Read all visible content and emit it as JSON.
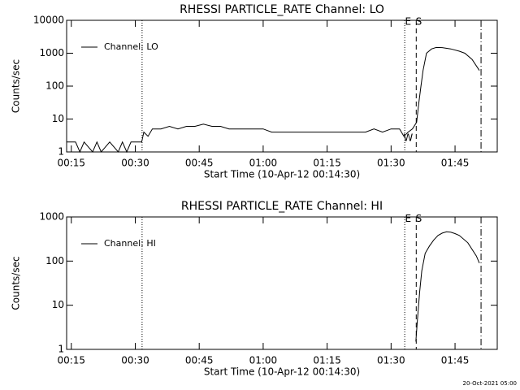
{
  "chart_data": [
    {
      "type": "line",
      "title": "RHESSI PARTICLE_RATE Channel: LO",
      "x_label": "Start Time (10-Apr-12 00:14:30)",
      "y_label": "Counts/sec",
      "log_y": true,
      "xlim": [
        13.9,
        114.9
      ],
      "ylim": [
        1,
        10000
      ],
      "xticks": [
        {
          "value": 15,
          "label": "00:15"
        },
        {
          "value": 30,
          "label": "00:30"
        },
        {
          "value": 45,
          "label": "00:45"
        },
        {
          "value": 60,
          "label": "01:00"
        },
        {
          "value": 75,
          "label": "01:15"
        },
        {
          "value": 90,
          "label": "01:30"
        },
        {
          "value": 105,
          "label": "01:45"
        }
      ],
      "yticks": [
        1,
        10,
        100,
        1000,
        10000
      ],
      "vlines": [
        {
          "x": 31.6,
          "style": "dotted"
        },
        {
          "x": 93.2,
          "style": "dotted"
        },
        {
          "x": 95.9,
          "style": "dashed"
        },
        {
          "x": 111.1,
          "style": "dashdot"
        }
      ],
      "annotations": [
        {
          "text": "E",
          "x": 94.0,
          "y": 9000
        },
        {
          "text": "S",
          "x": 96.5,
          "y": 9000
        },
        {
          "text": "W",
          "x": 94.0,
          "y": 2.6
        }
      ],
      "legend": "upper left",
      "series": [
        {
          "name": "Channel: LO",
          "color": "#000000",
          "x": [
            14,
            16,
            17,
            18,
            20,
            21,
            22,
            24,
            26,
            27,
            28,
            29,
            30,
            31.5,
            32,
            33,
            34,
            36,
            38,
            40,
            42,
            44,
            46,
            48,
            50,
            52,
            54,
            56,
            58,
            60,
            62,
            64,
            66,
            68,
            70,
            72,
            74,
            76,
            78,
            80,
            82,
            84,
            86,
            88,
            90,
            92,
            93,
            94,
            95,
            96,
            96.5,
            97,
            97.5,
            98.3,
            99.5,
            100.6,
            102,
            104,
            106,
            107.3,
            109,
            110.7
          ],
          "values": [
            2,
            2,
            1,
            2,
            1,
            2,
            1,
            2,
            1,
            2,
            1,
            2,
            2,
            2,
            4,
            3,
            5,
            5,
            6,
            5,
            6,
            6,
            7,
            6,
            6,
            5,
            5,
            5,
            5,
            5,
            4,
            4,
            4,
            4,
            4,
            4,
            4,
            4,
            4,
            4,
            4,
            4,
            5,
            4,
            5,
            5,
            3,
            4,
            5,
            8,
            30,
            100,
            300,
            1000,
            1350,
            1500,
            1480,
            1350,
            1150,
            1000,
            650,
            300
          ]
        }
      ]
    },
    {
      "type": "line",
      "title": "RHESSI PARTICLE_RATE Channel: HI",
      "x_label": "Start Time (10-Apr-12 00:14:30)",
      "y_label": "Counts/sec",
      "log_y": true,
      "xlim": [
        13.9,
        114.9
      ],
      "ylim": [
        1,
        1000
      ],
      "xticks": [
        {
          "value": 15,
          "label": "00:15"
        },
        {
          "value": 30,
          "label": "00:30"
        },
        {
          "value": 45,
          "label": "00:45"
        },
        {
          "value": 60,
          "label": "01:00"
        },
        {
          "value": 75,
          "label": "01:15"
        },
        {
          "value": 90,
          "label": "01:30"
        },
        {
          "value": 105,
          "label": "01:45"
        }
      ],
      "yticks": [
        1,
        10,
        100,
        1000
      ],
      "vlines": [
        {
          "x": 31.6,
          "style": "dotted"
        },
        {
          "x": 93.2,
          "style": "dotted"
        },
        {
          "x": 95.9,
          "style": "dashed"
        },
        {
          "x": 111.1,
          "style": "dashdot"
        }
      ],
      "annotations": [
        {
          "text": "E",
          "x": 94.0,
          "y": 900
        },
        {
          "text": "S",
          "x": 96.5,
          "y": 900
        }
      ],
      "legend": "upper left",
      "series": [
        {
          "name": "Channel: HI",
          "color": "#000000",
          "x": [
            95.8,
            96.2,
            96.7,
            97.2,
            98,
            99,
            100,
            101,
            102,
            103,
            104,
            105,
            106,
            108,
            110,
            110.7
          ],
          "values": [
            1.5,
            5,
            20,
            60,
            150,
            220,
            300,
            380,
            430,
            460,
            450,
            420,
            380,
            260,
            130,
            90
          ]
        }
      ]
    }
  ],
  "footer": "20-Oct-2021 05:00"
}
